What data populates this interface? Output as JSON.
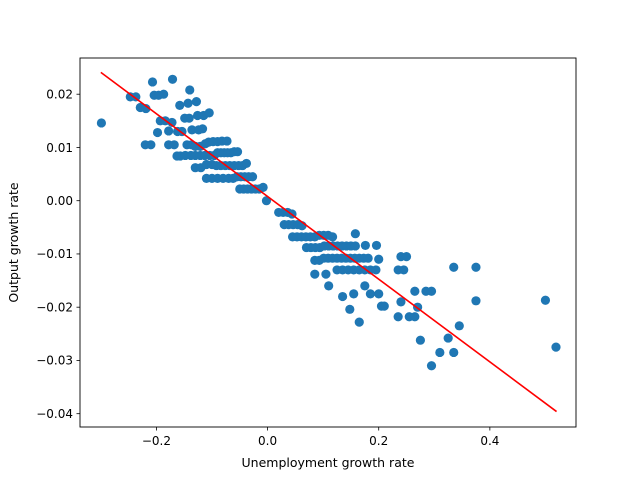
{
  "chart_data": {
    "type": "scatter",
    "title": "",
    "xlabel": "Unemployment growth rate",
    "ylabel": "Output growth rate",
    "xlim": [
      -0.3375,
      0.555
    ],
    "ylim": [
      -0.0425,
      0.0268
    ],
    "grid": false,
    "xticks": [
      -0.2,
      0.0,
      0.2,
      0.4
    ],
    "xtick_labels": [
      "−0.2",
      "0.0",
      "0.2",
      "0.4"
    ],
    "yticks": [
      -0.04,
      -0.03,
      -0.02,
      -0.01,
      0.0,
      0.01,
      0.02
    ],
    "ytick_labels": [
      "−0.04",
      "−0.03",
      "−0.02",
      "−0.01",
      "0.00",
      "0.01",
      "0.02"
    ],
    "colors": {
      "points": "#1f77b4",
      "fit_line": "#ff0000"
    },
    "series": [
      {
        "kind": "scatter",
        "points": [
          [
            -0.299,
            0.0146
          ],
          [
            -0.247,
            0.0195
          ],
          [
            -0.237,
            0.0195
          ],
          [
            -0.229,
            0.0175
          ],
          [
            -0.219,
            0.0173
          ],
          [
            -0.207,
            0.0223
          ],
          [
            -0.204,
            0.0198
          ],
          [
            -0.196,
            0.0198
          ],
          [
            -0.187,
            0.02
          ],
          [
            -0.171,
            0.0228
          ],
          [
            -0.158,
            0.0179
          ],
          [
            -0.143,
            0.0183
          ],
          [
            -0.14,
            0.0208
          ],
          [
            -0.128,
            0.0186
          ],
          [
            -0.22,
            0.0105
          ],
          [
            -0.21,
            0.0105
          ],
          [
            -0.198,
            0.0128
          ],
          [
            -0.193,
            0.015
          ],
          [
            -0.184,
            0.015
          ],
          [
            -0.178,
            0.0131
          ],
          [
            -0.172,
            0.0147
          ],
          [
            -0.162,
            0.013
          ],
          [
            -0.154,
            0.013
          ],
          [
            -0.149,
            0.0155
          ],
          [
            -0.141,
            0.0155
          ],
          [
            -0.136,
            0.0133
          ],
          [
            -0.124,
            0.0133
          ],
          [
            -0.126,
            0.016
          ],
          [
            -0.115,
            0.016
          ],
          [
            -0.117,
            0.0135
          ],
          [
            -0.105,
            0.0165
          ],
          [
            -0.178,
            0.0105
          ],
          [
            -0.168,
            0.0105
          ],
          [
            -0.163,
            0.0084
          ],
          [
            -0.157,
            0.0084
          ],
          [
            -0.145,
            0.0105
          ],
          [
            -0.137,
            0.0105
          ],
          [
            -0.13,
            0.0102
          ],
          [
            -0.121,
            0.0102
          ],
          [
            -0.112,
            0.0107
          ],
          [
            -0.106,
            0.011
          ],
          [
            -0.098,
            0.0111
          ],
          [
            -0.09,
            0.0111
          ],
          [
            -0.082,
            0.0112
          ],
          [
            -0.073,
            0.0112
          ],
          [
            -0.148,
            0.0085
          ],
          [
            -0.138,
            0.0085
          ],
          [
            -0.13,
            0.0085
          ],
          [
            -0.121,
            0.0085
          ],
          [
            -0.113,
            0.0085
          ],
          [
            -0.104,
            0.0085
          ],
          [
            -0.096,
            0.0085
          ],
          [
            -0.09,
            0.009
          ],
          [
            -0.084,
            0.009
          ],
          [
            -0.078,
            0.009
          ],
          [
            -0.072,
            0.009
          ],
          [
            -0.066,
            0.009
          ],
          [
            -0.06,
            0.0092
          ],
          [
            -0.054,
            0.0092
          ],
          [
            -0.13,
            0.0062
          ],
          [
            -0.12,
            0.0062
          ],
          [
            -0.11,
            0.0068
          ],
          [
            -0.1,
            0.0068
          ],
          [
            -0.092,
            0.0066
          ],
          [
            -0.084,
            0.0066
          ],
          [
            -0.076,
            0.0066
          ],
          [
            -0.068,
            0.0066
          ],
          [
            -0.06,
            0.0066
          ],
          [
            -0.052,
            0.0066
          ],
          [
            -0.045,
            0.0066
          ],
          [
            -0.038,
            0.007
          ],
          [
            -0.11,
            0.0042
          ],
          [
            -0.1,
            0.0042
          ],
          [
            -0.09,
            0.0042
          ],
          [
            -0.08,
            0.0042
          ],
          [
            -0.07,
            0.0042
          ],
          [
            -0.062,
            0.0042
          ],
          [
            -0.055,
            0.0045
          ],
          [
            -0.048,
            0.0045
          ],
          [
            -0.041,
            0.0045
          ],
          [
            -0.034,
            0.0045
          ],
          [
            -0.027,
            0.0045
          ],
          [
            -0.05,
            0.0022
          ],
          [
            -0.043,
            0.0022
          ],
          [
            -0.036,
            0.0022
          ],
          [
            -0.029,
            0.0022
          ],
          [
            -0.022,
            0.0022
          ],
          [
            -0.015,
            0.0022
          ],
          [
            -0.008,
            0.0025
          ],
          [
            -0.002,
            0.0
          ],
          [
            0.02,
            -0.0022
          ],
          [
            0.028,
            -0.0022
          ],
          [
            0.036,
            -0.0022
          ],
          [
            0.044,
            -0.0025
          ],
          [
            0.03,
            -0.0045
          ],
          [
            0.038,
            -0.0045
          ],
          [
            0.046,
            -0.0045
          ],
          [
            0.054,
            -0.0045
          ],
          [
            0.062,
            -0.0047
          ],
          [
            0.045,
            -0.0068
          ],
          [
            0.053,
            -0.0068
          ],
          [
            0.061,
            -0.0068
          ],
          [
            0.069,
            -0.0068
          ],
          [
            0.077,
            -0.0068
          ],
          [
            0.085,
            -0.0068
          ],
          [
            0.093,
            -0.0065
          ],
          [
            0.101,
            -0.0065
          ],
          [
            0.109,
            -0.0065
          ],
          [
            0.117,
            -0.0068
          ],
          [
            0.07,
            -0.0088
          ],
          [
            0.078,
            -0.0088
          ],
          [
            0.086,
            -0.0088
          ],
          [
            0.094,
            -0.0088
          ],
          [
            0.102,
            -0.0085
          ],
          [
            0.11,
            -0.0085
          ],
          [
            0.118,
            -0.0085
          ],
          [
            0.126,
            -0.0085
          ],
          [
            0.134,
            -0.0085
          ],
          [
            0.142,
            -0.0085
          ],
          [
            0.15,
            -0.0085
          ],
          [
            0.158,
            -0.0085
          ],
          [
            0.085,
            -0.0112
          ],
          [
            0.093,
            -0.0112
          ],
          [
            0.101,
            -0.0108
          ],
          [
            0.109,
            -0.0108
          ],
          [
            0.117,
            -0.0108
          ],
          [
            0.125,
            -0.0108
          ],
          [
            0.133,
            -0.0108
          ],
          [
            0.141,
            -0.0108
          ],
          [
            0.149,
            -0.0108
          ],
          [
            0.157,
            -0.0108
          ],
          [
            0.165,
            -0.0108
          ],
          [
            0.173,
            -0.0108
          ],
          [
            0.181,
            -0.0108
          ],
          [
            0.158,
            -0.0062
          ],
          [
            0.176,
            -0.0084
          ],
          [
            0.196,
            -0.0084
          ],
          [
            0.2,
            -0.011
          ],
          [
            0.24,
            -0.0105
          ],
          [
            0.25,
            -0.0105
          ],
          [
            0.085,
            -0.0138
          ],
          [
            0.105,
            -0.0138
          ],
          [
            0.125,
            -0.013
          ],
          [
            0.135,
            -0.013
          ],
          [
            0.145,
            -0.013
          ],
          [
            0.155,
            -0.013
          ],
          [
            0.165,
            -0.013
          ],
          [
            0.175,
            -0.013
          ],
          [
            0.185,
            -0.013
          ],
          [
            0.195,
            -0.013
          ],
          [
            0.235,
            -0.013
          ],
          [
            0.245,
            -0.013
          ],
          [
            0.11,
            -0.016
          ],
          [
            0.135,
            -0.018
          ],
          [
            0.155,
            -0.0175
          ],
          [
            0.175,
            -0.016
          ],
          [
            0.185,
            -0.0175
          ],
          [
            0.2,
            -0.0175
          ],
          [
            0.205,
            -0.0198
          ],
          [
            0.21,
            -0.0198
          ],
          [
            0.24,
            -0.019
          ],
          [
            0.265,
            -0.017
          ],
          [
            0.27,
            -0.02
          ],
          [
            0.285,
            -0.017
          ],
          [
            0.295,
            -0.017
          ],
          [
            0.148,
            -0.0204
          ],
          [
            0.165,
            -0.0228
          ],
          [
            0.235,
            -0.0218
          ],
          [
            0.255,
            -0.0218
          ],
          [
            0.265,
            -0.0218
          ],
          [
            0.275,
            -0.0262
          ],
          [
            0.295,
            -0.031
          ],
          [
            0.31,
            -0.0285
          ],
          [
            0.325,
            -0.0258
          ],
          [
            0.335,
            -0.0285
          ],
          [
            0.345,
            -0.0235
          ],
          [
            0.335,
            -0.0125
          ],
          [
            0.375,
            -0.0125
          ],
          [
            0.375,
            -0.0188
          ],
          [
            0.5,
            -0.0187
          ],
          [
            0.519,
            -0.0275
          ]
        ]
      },
      {
        "kind": "line",
        "fit_x": [
          -0.3,
          0.52
        ],
        "fit_y": [
          0.0241,
          -0.0396
        ]
      }
    ]
  }
}
